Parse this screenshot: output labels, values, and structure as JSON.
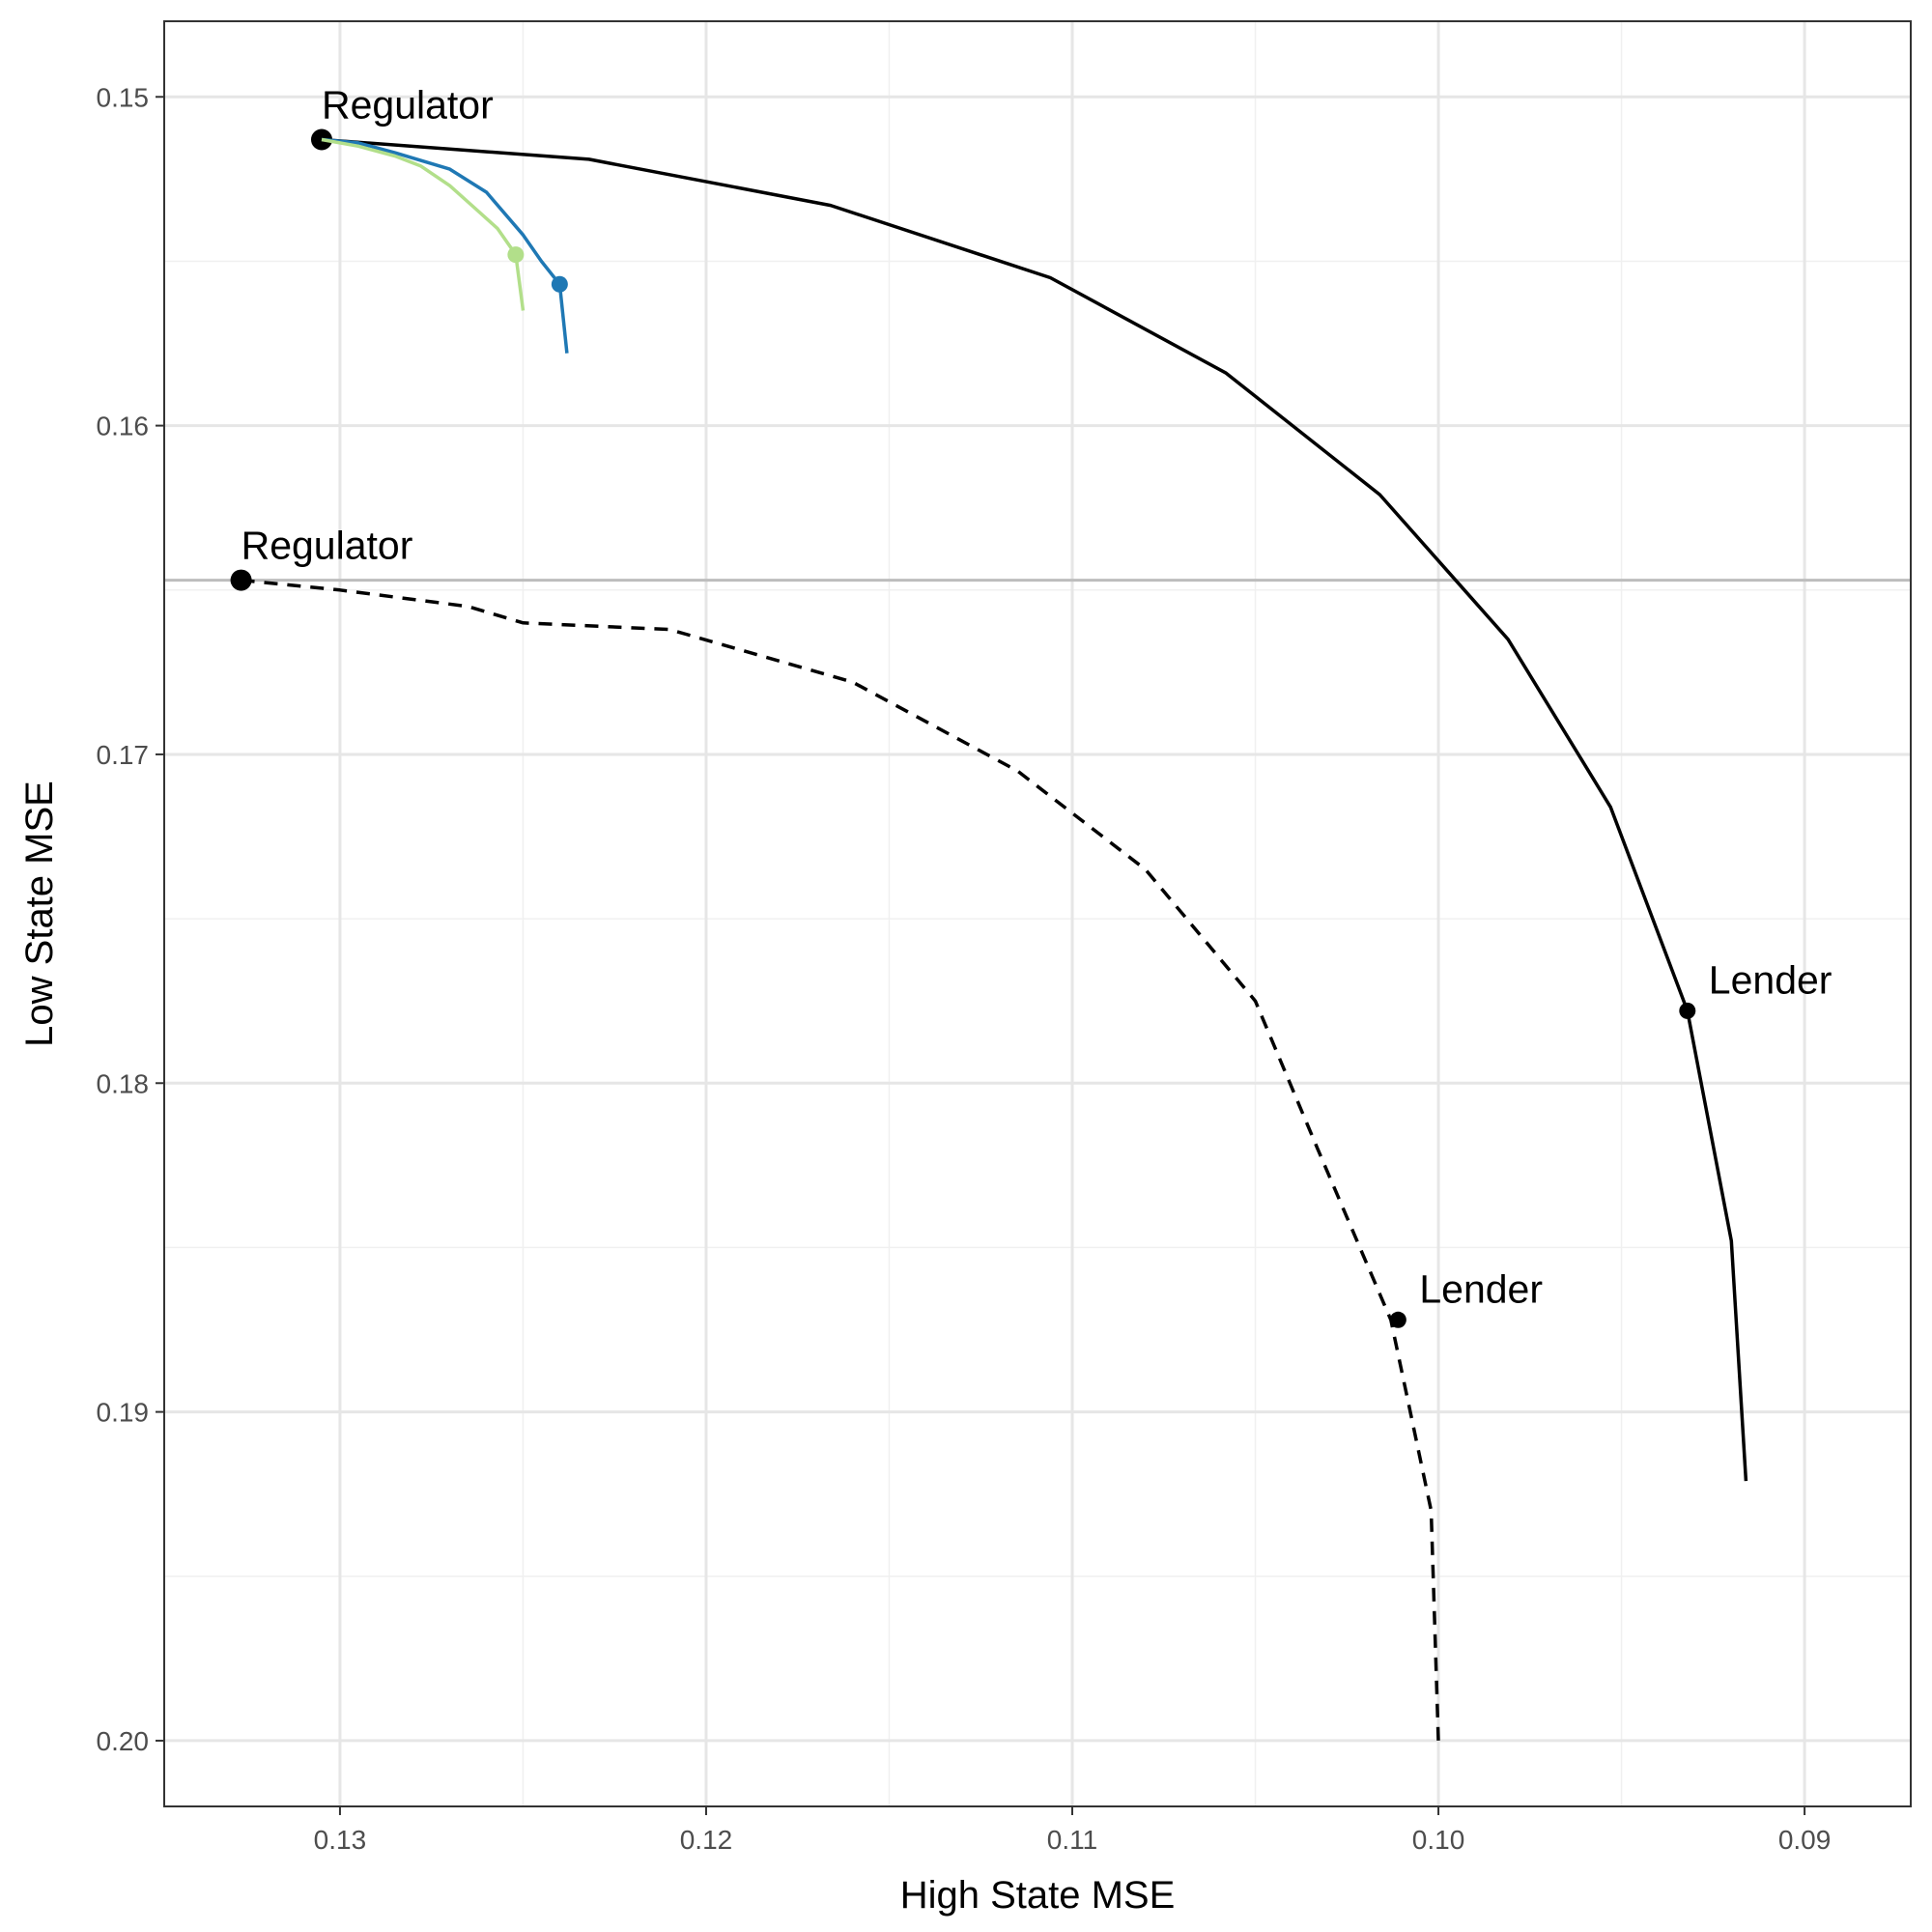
{
  "chart_data": {
    "type": "line",
    "xlabel": "High State MSE",
    "ylabel": "Low State MSE",
    "x_axis_reversed": true,
    "y_axis_reversed": true,
    "xlim": [
      0.1348,
      0.0871
    ],
    "ylim": [
      0.1477,
      0.202
    ],
    "x_ticks": [
      0.13,
      0.12,
      0.11,
      0.1,
      0.09
    ],
    "x_tick_labels": [
      "0.13",
      "0.12",
      "0.11",
      "0.10",
      "0.09"
    ],
    "y_ticks": [
      0.15,
      0.16,
      0.17,
      0.18,
      0.19,
      0.2
    ],
    "y_tick_labels": [
      "0.15",
      "0.16",
      "0.17",
      "0.18",
      "0.19",
      "0.20"
    ],
    "grid": true,
    "reference_line": {
      "y": 0.1647,
      "color": "#bdbdbd"
    },
    "series": [
      {
        "style": "solid",
        "color": "#000000",
        "x": [
          0.1305,
          0.1232,
          0.1166,
          0.1106,
          0.1058,
          0.1016,
          0.0981,
          0.0953,
          0.0932,
          0.092,
          0.0916
        ],
        "y": [
          0.1513,
          0.1519,
          0.1533,
          0.1555,
          0.1584,
          0.1621,
          0.1665,
          0.1716,
          0.1778,
          0.1848,
          0.1921
        ],
        "points": [
          {
            "x": 0.1305,
            "y": 0.1513,
            "label": "Regulator"
          },
          {
            "x": 0.0932,
            "y": 0.1778,
            "label": "Lender"
          }
        ]
      },
      {
        "style": "dashed",
        "color": "#000000",
        "x": [
          0.1327,
          0.13,
          0.1265,
          0.125,
          0.121,
          0.116,
          0.1115,
          0.108,
          0.105,
          0.1033,
          0.1013,
          0.1002,
          0.1
        ],
        "y": [
          0.1647,
          0.165,
          0.1655,
          0.166,
          0.1662,
          0.1678,
          0.1705,
          0.1735,
          0.1775,
          0.182,
          0.1872,
          0.193,
          0.2
        ],
        "points": [
          {
            "x": 0.1327,
            "y": 0.1647,
            "label": "Regulator"
          },
          {
            "x": 0.1011,
            "y": 0.1872,
            "label": "Lender"
          }
        ]
      },
      {
        "style": "solid",
        "color": "#1f78b4",
        "x": [
          0.1305,
          0.1295,
          0.1285,
          0.127,
          0.126,
          0.125,
          0.1245,
          0.124,
          0.1238
        ],
        "y": [
          0.1513,
          0.1514,
          0.1517,
          0.1522,
          0.1529,
          0.1542,
          0.155,
          0.1557,
          0.1578
        ],
        "points": [
          {
            "x": 0.124,
            "y": 0.1557
          }
        ]
      },
      {
        "style": "solid",
        "color": "#b2df8a",
        "x": [
          0.1305,
          0.1295,
          0.1285,
          0.1278,
          0.127,
          0.1263,
          0.1257,
          0.1252,
          0.125
        ],
        "y": [
          0.1513,
          0.1515,
          0.1518,
          0.1521,
          0.1527,
          0.1534,
          0.154,
          0.1548,
          0.1565
        ],
        "points": [
          {
            "x": 0.1252,
            "y": 0.1548
          }
        ]
      }
    ]
  }
}
